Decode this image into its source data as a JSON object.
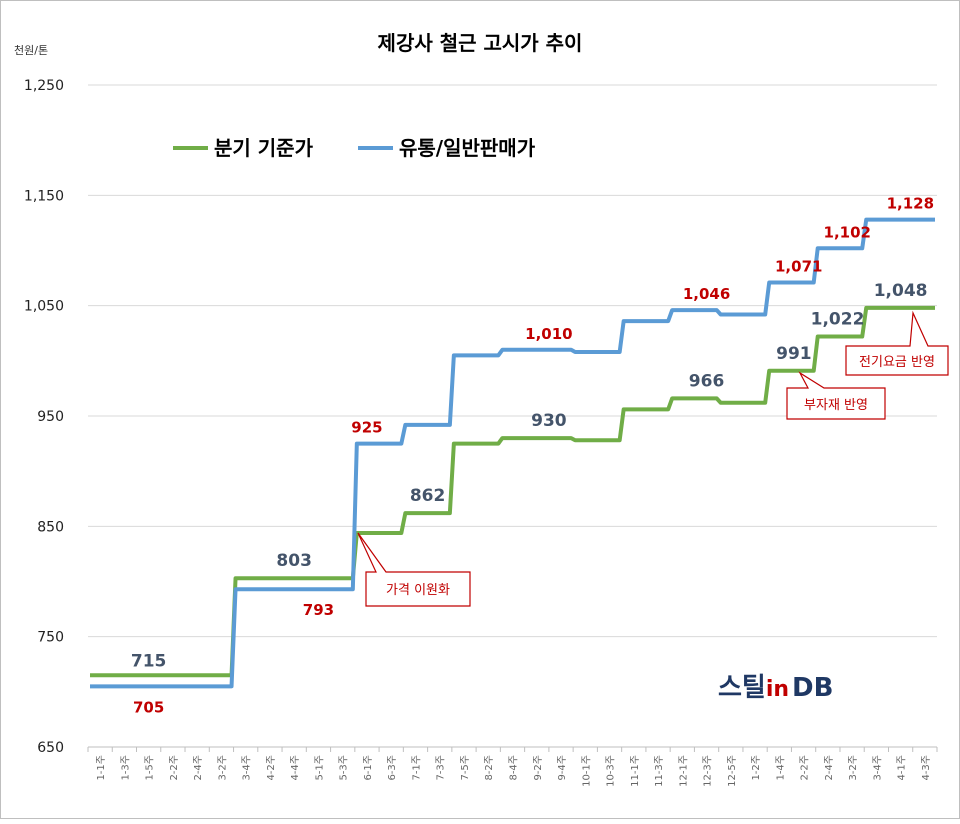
{
  "chart_data": {
    "type": "line",
    "title": "제강사 철근 고시가 추이",
    "unit_label": "천원/톤",
    "ylim": [
      650,
      1250
    ],
    "yticks": [
      "650",
      "750",
      "850",
      "950",
      "1,050",
      "1,150",
      "1,250"
    ],
    "ytick_values": [
      650,
      750,
      850,
      950,
      1050,
      1150,
      1250
    ],
    "grid": true,
    "legend_position": "top-left",
    "x": [
      "1-1주",
      "1-3주",
      "1-5주",
      "2-2주",
      "2-4주",
      "3-2주",
      "3-4주",
      "4-2주",
      "4-4주",
      "5-1주",
      "5-3주",
      "6-1주",
      "6-3주",
      "7-1주",
      "7-3주",
      "7-5주",
      "8-2주",
      "8-4주",
      "9-2주",
      "9-4주",
      "10-1주",
      "10-3주",
      "11-1주",
      "11-3주",
      "12-1주",
      "12-3주",
      "12-5주",
      "1-2주",
      "1-4주",
      "2-2주",
      "2-4주",
      "3-2주",
      "3-4주",
      "4-1주",
      "4-3주"
    ],
    "series": [
      {
        "name": "분기 기준가",
        "color": "#70ad47",
        "values": [
          715,
          715,
          715,
          715,
          715,
          715,
          803,
          803,
          803,
          803,
          803,
          844,
          844,
          862,
          862,
          925,
          925,
          930,
          930,
          930,
          928,
          928,
          956,
          956,
          966,
          966,
          962,
          962,
          991,
          991,
          1022,
          1022,
          1048,
          1048,
          1048
        ]
      },
      {
        "name": "유통/일반판매가",
        "color": "#5b9bd5",
        "values": [
          705,
          705,
          705,
          705,
          705,
          705,
          793,
          793,
          793,
          793,
          793,
          925,
          925,
          942,
          942,
          1005,
          1005,
          1010,
          1010,
          1010,
          1008,
          1008,
          1036,
          1036,
          1046,
          1046,
          1042,
          1042,
          1071,
          1071,
          1102,
          1102,
          1128,
          1128,
          1128
        ]
      }
    ],
    "data_labels": [
      {
        "series": 0,
        "index": 2,
        "text": "715"
      },
      {
        "series": 0,
        "index": 8,
        "text": "803"
      },
      {
        "series": 0,
        "index": 13.5,
        "text": "862"
      },
      {
        "series": 0,
        "index": 18.5,
        "text": "930"
      },
      {
        "series": 0,
        "index": 25,
        "text": "966"
      },
      {
        "series": 0,
        "index": 28.6,
        "text": "991"
      },
      {
        "series": 0,
        "index": 30.4,
        "text": "1,022"
      },
      {
        "series": 0,
        "index": 33,
        "text": "1,048"
      },
      {
        "series": 1,
        "index": 2,
        "text": "705"
      },
      {
        "series": 1,
        "index": 9,
        "text": "793"
      },
      {
        "series": 1,
        "index": 11,
        "text": "925"
      },
      {
        "series": 1,
        "index": 18.5,
        "text": "1,010"
      },
      {
        "series": 1,
        "index": 25,
        "text": "1,046"
      },
      {
        "series": 1,
        "index": 28.8,
        "text": "1,071"
      },
      {
        "series": 1,
        "index": 30.8,
        "text": "1,102"
      },
      {
        "series": 1,
        "index": 33.4,
        "text": "1,128"
      }
    ],
    "annotations": [
      {
        "text": "가격 이원화"
      },
      {
        "text": "부자재 반영"
      },
      {
        "text": "전기요금 반영"
      }
    ]
  },
  "logo": {
    "text_a": "스틸",
    "text_b": "in",
    "text_c": "DB"
  },
  "colors": {
    "accent_red": "#c00000",
    "label_gray": "#44546a",
    "grid": "#d9d9d9"
  }
}
